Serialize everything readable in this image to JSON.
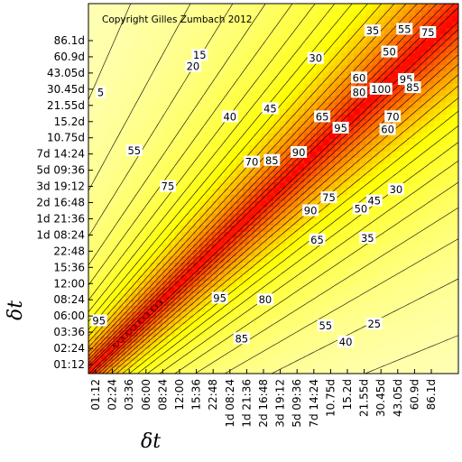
{
  "chart_data": {
    "type": "heatmap",
    "title": "",
    "annotation": "Copyright Gilles Zumbach 2012",
    "xlabel": "δt",
    "ylabel": "δt",
    "x_ticks": [
      "01:12",
      "02:24",
      "03:36",
      "06:00",
      "08:24",
      "12:00",
      "15:36",
      "22:48",
      "1d 08:24",
      "1d 21:36",
      "2d 16:48",
      "3d 19:12",
      "5d 09:36",
      "7d 14:24",
      "10.75d",
      "15.2d",
      "21.55d",
      "30.45d",
      "43.05d",
      "60.9d",
      "86.1d"
    ],
    "y_ticks": [
      "01:12",
      "02:24",
      "03:36",
      "06:00",
      "08:24",
      "12:00",
      "15:36",
      "22:48",
      "1d 08:24",
      "1d 21:36",
      "2d 16:48",
      "3d 19:12",
      "5d 09:36",
      "7d 14:24",
      "10.75d",
      "15.2d",
      "21.55d",
      "30.45d",
      "43.05d",
      "60.9d",
      "86.1d"
    ],
    "zrange": [
      0,
      100
    ],
    "contour_step": 5,
    "colormap": {
      "low": "#ffffd4",
      "mid": "#ffff00",
      "high": "#ff0000"
    },
    "contour_labels": [
      {
        "x": 6.2,
        "y": 19.1,
        "value": 15
      },
      {
        "x": 5.8,
        "y": 18.4,
        "value": 20
      },
      {
        "x": 0.3,
        "y": 16.8,
        "value": 5
      },
      {
        "x": 8.0,
        "y": 15.3,
        "value": 40
      },
      {
        "x": 10.4,
        "y": 15.8,
        "value": 45
      },
      {
        "x": 2.3,
        "y": 13.2,
        "value": 55
      },
      {
        "x": 9.3,
        "y": 12.5,
        "value": 70
      },
      {
        "x": 4.3,
        "y": 11.0,
        "value": 75
      },
      {
        "x": 13.1,
        "y": 18.9,
        "value": 30
      },
      {
        "x": 16.5,
        "y": 20.6,
        "value": 35
      },
      {
        "x": 17.5,
        "y": 19.3,
        "value": 50
      },
      {
        "x": 18.4,
        "y": 20.7,
        "value": 55
      },
      {
        "x": 19.8,
        "y": 20.5,
        "value": 75
      },
      {
        "x": 15.7,
        "y": 17.7,
        "value": 60
      },
      {
        "x": 15.7,
        "y": 16.8,
        "value": 80
      },
      {
        "x": 13.5,
        "y": 15.3,
        "value": 65
      },
      {
        "x": 10.5,
        "y": 12.6,
        "value": 85
      },
      {
        "x": 12.1,
        "y": 13.1,
        "value": 90
      },
      {
        "x": 14.6,
        "y": 14.6,
        "value": 95
      },
      {
        "x": 17.0,
        "y": 17.0,
        "value": 100
      },
      {
        "x": 18.5,
        "y": 17.6,
        "value": 95
      },
      {
        "x": 18.9,
        "y": 17.1,
        "value": 85
      },
      {
        "x": 17.7,
        "y": 15.3,
        "value": 70
      },
      {
        "x": 17.4,
        "y": 14.5,
        "value": 60
      },
      {
        "x": 12.8,
        "y": 9.5,
        "value": 90
      },
      {
        "x": 13.9,
        "y": 10.3,
        "value": 75
      },
      {
        "x": 15.8,
        "y": 9.6,
        "value": 50
      },
      {
        "x": 16.6,
        "y": 10.1,
        "value": 45
      },
      {
        "x": 17.9,
        "y": 10.8,
        "value": 30
      },
      {
        "x": 13.2,
        "y": 7.7,
        "value": 65
      },
      {
        "x": 16.2,
        "y": 7.8,
        "value": 35
      },
      {
        "x": 7.4,
        "y": 4.1,
        "value": 95
      },
      {
        "x": 10.1,
        "y": 4.0,
        "value": 80
      },
      {
        "x": 8.7,
        "y": 1.6,
        "value": 85
      },
      {
        "x": 13.7,
        "y": 2.4,
        "value": 55
      },
      {
        "x": 16.6,
        "y": 2.5,
        "value": 25
      },
      {
        "x": 14.9,
        "y": 1.4,
        "value": 40
      },
      {
        "x": 0.2,
        "y": 2.7,
        "value": 95
      }
    ]
  }
}
